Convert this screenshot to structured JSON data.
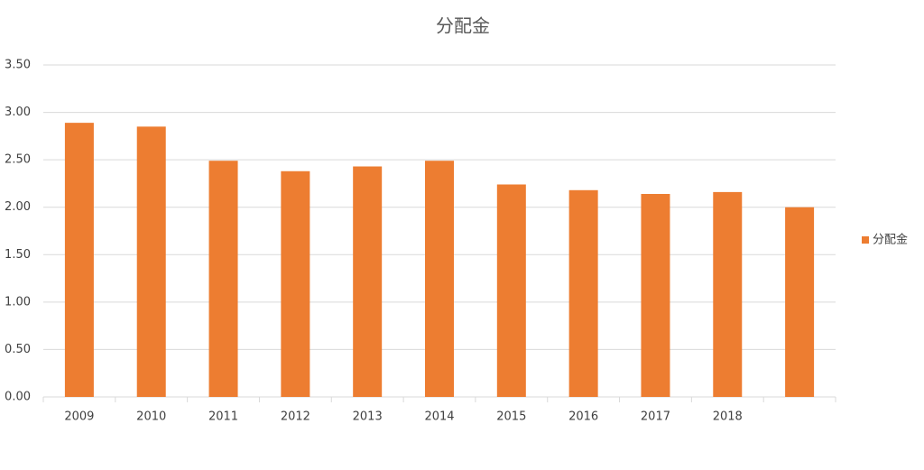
{
  "chart_data": {
    "type": "bar",
    "title": "分配金",
    "categories": [
      "2009",
      "2010",
      "2011",
      "2012",
      "2013",
      "2014",
      "2015",
      "2016",
      "2017",
      "2018",
      null
    ],
    "series": [
      {
        "name": "分配金",
        "color": "#ed7d31",
        "values": [
          2.89,
          2.85,
          2.49,
          2.38,
          2.43,
          2.49,
          2.24,
          2.18,
          2.14,
          2.16,
          2.0
        ]
      }
    ],
    "ylim": [
      0,
      3.5
    ],
    "yticks": [
      {
        "value": 0,
        "label": "0.00"
      },
      {
        "value": 0.5,
        "label": "0.50"
      },
      {
        "value": 1,
        "label": "1.00"
      },
      {
        "value": 1.5,
        "label": "1.50"
      },
      {
        "value": 2,
        "label": "2.00"
      },
      {
        "value": 2.5,
        "label": "2.50"
      },
      {
        "value": 3,
        "label": "3.00"
      },
      {
        "value": 3.5,
        "label": "3.50"
      }
    ],
    "grid": true,
    "legend": "right"
  }
}
